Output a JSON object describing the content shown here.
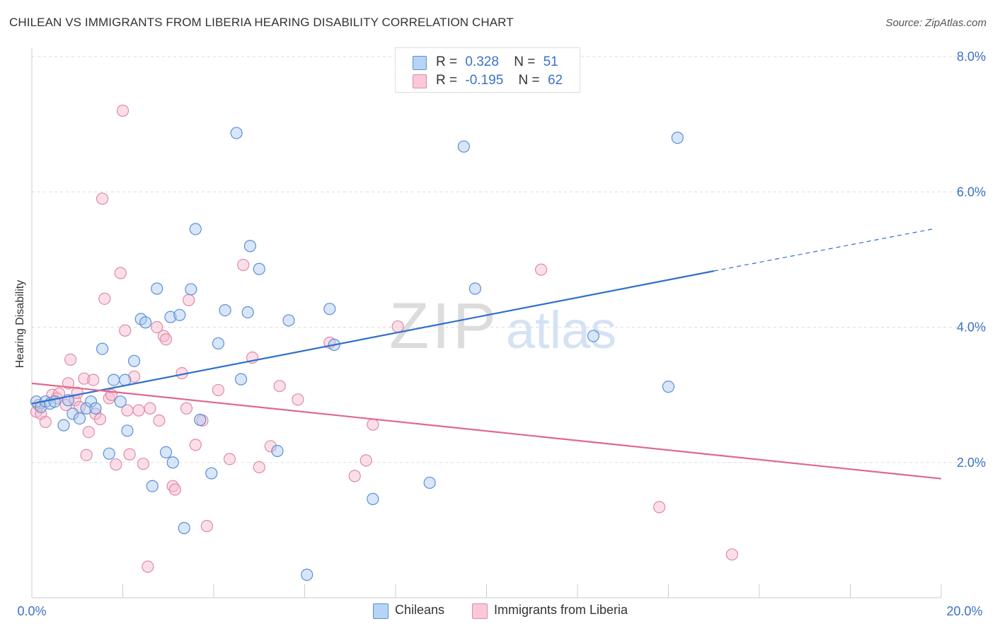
{
  "title": "CHILEAN VS IMMIGRANTS FROM LIBERIA HEARING DISABILITY CORRELATION CHART",
  "source": "Source: ZipAtlas.com",
  "watermark": {
    "zip": "ZIP",
    "atlas": "atlas"
  },
  "legend_top": [
    {
      "r_label": "R =",
      "r_value": "0.328",
      "n_label": "N =",
      "n_value": "51"
    },
    {
      "r_label": "R =",
      "r_value": "-0.195",
      "n_label": "N =",
      "n_value": "62"
    }
  ],
  "legend_bottom": [
    "Chileans",
    "Immigrants from Liberia"
  ],
  "colors": {
    "chileans_fill": "#a8c8f0",
    "chileans_stroke": "#5b8fd6",
    "chileans_line": "#2f6fcc",
    "liberia_fill": "#f6b8cc",
    "liberia_stroke": "#e08aa6",
    "liberia_line": "#e0678f",
    "tick_label": "#3b72c6",
    "grid": "#dddddd"
  },
  "chart_data": {
    "type": "scatter",
    "title": "CHILEAN VS IMMIGRANTS FROM LIBERIA HEARING DISABILITY CORRELATION CHART",
    "xlabel": "",
    "ylabel": "Hearing Disability",
    "xlim": [
      0,
      20
    ],
    "ylim": [
      0,
      8
    ],
    "x_tick_labels": [
      "0.0%",
      "20.0%"
    ],
    "y_ticks": [
      2,
      4,
      6,
      8
    ],
    "y_tick_labels": [
      "2.0%",
      "4.0%",
      "6.0%",
      "8.0%"
    ],
    "grid": true,
    "legend_position": "top-center",
    "series": [
      {
        "name": "Chileans",
        "r": 0.328,
        "n": 51,
        "trend": {
          "x0": 0,
          "y0": 2.87,
          "x1": 15,
          "y1": 4.83,
          "dashed_to_x": 19.8,
          "dashed_to_y": 5.45
        },
        "points": [
          [
            0.1,
            2.9
          ],
          [
            0.2,
            2.82
          ],
          [
            0.3,
            2.9
          ],
          [
            0.4,
            2.87
          ],
          [
            0.5,
            2.9
          ],
          [
            0.7,
            2.55
          ],
          [
            0.8,
            2.92
          ],
          [
            0.9,
            2.72
          ],
          [
            1.05,
            2.65
          ],
          [
            1.2,
            2.8
          ],
          [
            1.3,
            2.9
          ],
          [
            1.4,
            2.8
          ],
          [
            1.55,
            3.68
          ],
          [
            1.7,
            2.13
          ],
          [
            1.8,
            3.22
          ],
          [
            1.95,
            2.9
          ],
          [
            2.05,
            3.22
          ],
          [
            2.1,
            2.47
          ],
          [
            2.25,
            3.5
          ],
          [
            2.4,
            4.12
          ],
          [
            2.5,
            4.07
          ],
          [
            2.65,
            1.65
          ],
          [
            2.75,
            4.57
          ],
          [
            2.95,
            2.15
          ],
          [
            3.05,
            4.15
          ],
          [
            3.1,
            2.0
          ],
          [
            3.25,
            4.18
          ],
          [
            3.35,
            1.03
          ],
          [
            3.5,
            4.56
          ],
          [
            3.6,
            5.45
          ],
          [
            3.7,
            2.63
          ],
          [
            3.95,
            1.84
          ],
          [
            4.1,
            3.76
          ],
          [
            4.25,
            4.25
          ],
          [
            4.5,
            6.87
          ],
          [
            4.6,
            3.23
          ],
          [
            4.75,
            4.22
          ],
          [
            4.8,
            5.2
          ],
          [
            5.0,
            4.86
          ],
          [
            5.4,
            2.17
          ],
          [
            5.65,
            4.1
          ],
          [
            6.05,
            0.34
          ],
          [
            6.55,
            4.27
          ],
          [
            6.65,
            3.74
          ],
          [
            7.5,
            1.46
          ],
          [
            8.75,
            1.7
          ],
          [
            9.5,
            6.67
          ],
          [
            9.75,
            4.57
          ],
          [
            12.35,
            3.87
          ],
          [
            14.0,
            3.12
          ],
          [
            14.2,
            6.8
          ]
        ]
      },
      {
        "name": "Immigrants from Liberia",
        "r": -0.195,
        "n": 62,
        "trend": {
          "x0": 0,
          "y0": 3.17,
          "x1": 20,
          "y1": 1.76
        },
        "points": [
          [
            0.1,
            2.75
          ],
          [
            0.15,
            2.85
          ],
          [
            0.2,
            2.72
          ],
          [
            0.3,
            2.6
          ],
          [
            0.45,
            3.0
          ],
          [
            0.55,
            2.95
          ],
          [
            0.6,
            3.02
          ],
          [
            0.75,
            2.85
          ],
          [
            0.8,
            3.17
          ],
          [
            0.85,
            3.52
          ],
          [
            0.95,
            2.92
          ],
          [
            1.0,
            3.03
          ],
          [
            1.05,
            2.82
          ],
          [
            1.15,
            3.24
          ],
          [
            1.2,
            2.11
          ],
          [
            1.25,
            2.45
          ],
          [
            1.35,
            3.22
          ],
          [
            1.4,
            2.72
          ],
          [
            1.5,
            2.64
          ],
          [
            1.55,
            5.9
          ],
          [
            1.6,
            4.42
          ],
          [
            1.7,
            2.95
          ],
          [
            1.75,
            3.0
          ],
          [
            1.85,
            1.97
          ],
          [
            1.95,
            4.8
          ],
          [
            2.0,
            7.2
          ],
          [
            2.05,
            3.95
          ],
          [
            2.1,
            2.77
          ],
          [
            2.15,
            2.12
          ],
          [
            2.25,
            3.27
          ],
          [
            2.35,
            2.77
          ],
          [
            2.45,
            1.98
          ],
          [
            2.55,
            0.46
          ],
          [
            2.6,
            2.8
          ],
          [
            2.75,
            4.0
          ],
          [
            2.8,
            2.62
          ],
          [
            2.9,
            3.87
          ],
          [
            2.95,
            3.82
          ],
          [
            3.1,
            1.65
          ],
          [
            3.15,
            1.6
          ],
          [
            3.3,
            3.32
          ],
          [
            3.4,
            2.8
          ],
          [
            3.45,
            4.4
          ],
          [
            3.6,
            2.26
          ],
          [
            3.75,
            2.62
          ],
          [
            3.85,
            1.06
          ],
          [
            4.1,
            3.07
          ],
          [
            4.35,
            2.05
          ],
          [
            4.65,
            4.92
          ],
          [
            4.85,
            3.55
          ],
          [
            5.0,
            1.93
          ],
          [
            5.25,
            2.24
          ],
          [
            5.45,
            3.13
          ],
          [
            5.85,
            2.93
          ],
          [
            6.55,
            3.77
          ],
          [
            7.1,
            1.8
          ],
          [
            7.35,
            2.03
          ],
          [
            7.5,
            2.56
          ],
          [
            8.05,
            4.01
          ],
          [
            11.2,
            4.85
          ],
          [
            13.8,
            1.34
          ],
          [
            15.4,
            0.64
          ]
        ]
      }
    ]
  }
}
